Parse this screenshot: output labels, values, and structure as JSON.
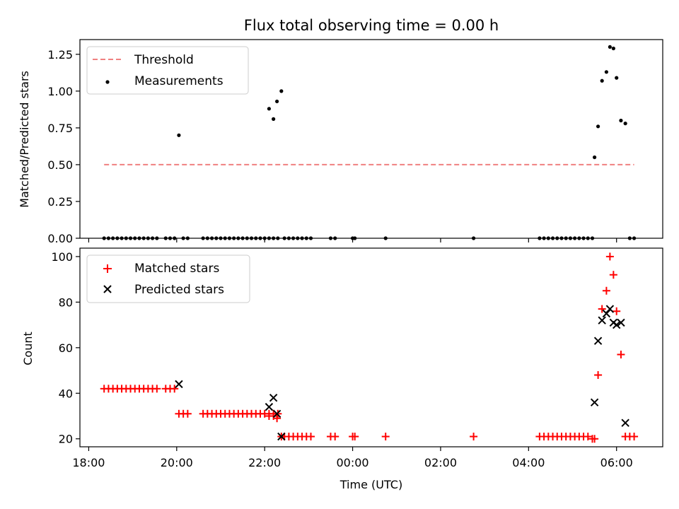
{
  "figure": {
    "title": "Flux total observing time = 0.00 h",
    "xlabel": "Time (UTC)",
    "x_ticks": [
      "18:00",
      "20:00",
      "22:00",
      "00:00",
      "02:00",
      "04:00",
      "06:00"
    ]
  },
  "chart_data": [
    {
      "type": "scatter",
      "title": "Flux total observing time = 0.00 h",
      "ylabel": "Matched/Predicted stars",
      "xlabel": "",
      "x_unit": "hours since 18:00 UTC",
      "xlim": [
        -0.2,
        13.05
      ],
      "ylim": [
        0,
        1.35
      ],
      "y_ticks": [
        "0.00",
        "0.25",
        "0.50",
        "0.75",
        "1.00",
        "1.25"
      ],
      "legend_position": "top-left",
      "threshold": {
        "name": "Threshold",
        "value": 0.5,
        "x_range": [
          0.35,
          12.4
        ],
        "color": "#f08080"
      },
      "series": [
        {
          "name": "Measurements",
          "color": "#000000",
          "points": [
            [
              0.35,
              0
            ],
            [
              0.45,
              0
            ],
            [
              0.55,
              0
            ],
            [
              0.65,
              0
            ],
            [
              0.75,
              0
            ],
            [
              0.85,
              0
            ],
            [
              0.95,
              0
            ],
            [
              1.05,
              0
            ],
            [
              1.15,
              0
            ],
            [
              1.25,
              0
            ],
            [
              1.35,
              0
            ],
            [
              1.45,
              0
            ],
            [
              1.55,
              0
            ],
            [
              1.75,
              0
            ],
            [
              1.85,
              0
            ],
            [
              1.95,
              0
            ],
            [
              2.05,
              0.7
            ],
            [
              2.15,
              0
            ],
            [
              2.25,
              0
            ],
            [
              2.6,
              0
            ],
            [
              2.7,
              0
            ],
            [
              2.8,
              0
            ],
            [
              2.9,
              0
            ],
            [
              3.0,
              0
            ],
            [
              3.1,
              0
            ],
            [
              3.2,
              0
            ],
            [
              3.3,
              0
            ],
            [
              3.4,
              0
            ],
            [
              3.5,
              0
            ],
            [
              3.6,
              0
            ],
            [
              3.7,
              0
            ],
            [
              3.8,
              0
            ],
            [
              3.9,
              0
            ],
            [
              4.0,
              0
            ],
            [
              4.1,
              0
            ],
            [
              4.2,
              0
            ],
            [
              4.3,
              0
            ],
            [
              4.1,
              0.88
            ],
            [
              4.2,
              0.81
            ],
            [
              4.28,
              0.93
            ],
            [
              4.38,
              1.0
            ],
            [
              4.45,
              0
            ],
            [
              4.55,
              0
            ],
            [
              4.65,
              0
            ],
            [
              4.75,
              0
            ],
            [
              4.85,
              0
            ],
            [
              4.95,
              0
            ],
            [
              5.05,
              0
            ],
            [
              5.5,
              0
            ],
            [
              5.6,
              0
            ],
            [
              6.0,
              0
            ],
            [
              6.05,
              0
            ],
            [
              6.75,
              0
            ],
            [
              8.75,
              0
            ],
            [
              10.25,
              0
            ],
            [
              10.35,
              0
            ],
            [
              10.45,
              0
            ],
            [
              10.55,
              0
            ],
            [
              10.65,
              0
            ],
            [
              10.75,
              0
            ],
            [
              10.85,
              0
            ],
            [
              10.95,
              0
            ],
            [
              11.05,
              0
            ],
            [
              11.15,
              0
            ],
            [
              11.25,
              0
            ],
            [
              11.35,
              0
            ],
            [
              11.45,
              0
            ],
            [
              11.5,
              0.55
            ],
            [
              11.58,
              0.76
            ],
            [
              11.67,
              1.07
            ],
            [
              11.77,
              1.13
            ],
            [
              11.85,
              1.3
            ],
            [
              11.93,
              1.29
            ],
            [
              12.0,
              1.09
            ],
            [
              12.1,
              0.8
            ],
            [
              12.2,
              0.78
            ],
            [
              12.3,
              0
            ],
            [
              12.4,
              0
            ]
          ]
        }
      ]
    },
    {
      "type": "scatter",
      "ylabel": "Count",
      "xlabel": "Time (UTC)",
      "x_unit": "hours since 18:00 UTC",
      "xlim": [
        -0.2,
        13.05
      ],
      "ylim": [
        16.5,
        103.7
      ],
      "y_ticks": [
        "20",
        "40",
        "60",
        "80",
        "100"
      ],
      "legend_position": "top-left",
      "series": [
        {
          "name": "Matched stars",
          "marker": "plus",
          "color": "#ff0000",
          "points": [
            [
              0.35,
              42
            ],
            [
              0.45,
              42
            ],
            [
              0.55,
              42
            ],
            [
              0.65,
              42
            ],
            [
              0.75,
              42
            ],
            [
              0.85,
              42
            ],
            [
              0.95,
              42
            ],
            [
              1.05,
              42
            ],
            [
              1.15,
              42
            ],
            [
              1.25,
              42
            ],
            [
              1.35,
              42
            ],
            [
              1.45,
              42
            ],
            [
              1.55,
              42
            ],
            [
              1.75,
              42
            ],
            [
              1.85,
              42
            ],
            [
              1.95,
              42
            ],
            [
              2.05,
              31
            ],
            [
              2.15,
              31
            ],
            [
              2.25,
              31
            ],
            [
              2.6,
              31
            ],
            [
              2.7,
              31
            ],
            [
              2.8,
              31
            ],
            [
              2.9,
              31
            ],
            [
              3.0,
              31
            ],
            [
              3.1,
              31
            ],
            [
              3.2,
              31
            ],
            [
              3.3,
              31
            ],
            [
              3.4,
              31
            ],
            [
              3.5,
              31
            ],
            [
              3.6,
              31
            ],
            [
              3.7,
              31
            ],
            [
              3.8,
              31
            ],
            [
              3.9,
              31
            ],
            [
              4.0,
              31
            ],
            [
              4.1,
              31
            ],
            [
              4.2,
              31
            ],
            [
              4.3,
              31
            ],
            [
              4.1,
              30
            ],
            [
              4.2,
              30
            ],
            [
              4.28,
              29
            ],
            [
              4.38,
              21
            ],
            [
              4.45,
              21
            ],
            [
              4.55,
              21
            ],
            [
              4.65,
              21
            ],
            [
              4.75,
              21
            ],
            [
              4.85,
              21
            ],
            [
              4.95,
              21
            ],
            [
              5.05,
              21
            ],
            [
              5.5,
              21
            ],
            [
              5.6,
              21
            ],
            [
              6.0,
              21
            ],
            [
              6.05,
              21
            ],
            [
              6.75,
              21
            ],
            [
              8.75,
              21
            ],
            [
              10.25,
              21
            ],
            [
              10.35,
              21
            ],
            [
              10.45,
              21
            ],
            [
              10.55,
              21
            ],
            [
              10.65,
              21
            ],
            [
              10.75,
              21
            ],
            [
              10.85,
              21
            ],
            [
              10.95,
              21
            ],
            [
              11.05,
              21
            ],
            [
              11.15,
              21
            ],
            [
              11.25,
              21
            ],
            [
              11.35,
              21
            ],
            [
              11.45,
              20
            ],
            [
              11.5,
              20
            ],
            [
              11.58,
              48
            ],
            [
              11.67,
              77
            ],
            [
              11.77,
              85
            ],
            [
              11.85,
              100
            ],
            [
              11.93,
              92
            ],
            [
              12.0,
              76
            ],
            [
              12.1,
              57
            ],
            [
              12.2,
              21
            ],
            [
              12.3,
              21
            ],
            [
              12.4,
              21
            ]
          ]
        },
        {
          "name": "Predicted stars",
          "marker": "x",
          "color": "#000000",
          "points": [
            [
              2.05,
              44
            ],
            [
              4.1,
              34
            ],
            [
              4.2,
              38
            ],
            [
              4.28,
              31
            ],
            [
              4.38,
              21
            ],
            [
              11.5,
              36
            ],
            [
              11.58,
              63
            ],
            [
              11.67,
              72
            ],
            [
              11.77,
              75
            ],
            [
              11.85,
              77
            ],
            [
              11.93,
              71
            ],
            [
              12.0,
              70
            ],
            [
              12.1,
              71
            ],
            [
              12.2,
              27
            ]
          ]
        }
      ]
    }
  ]
}
